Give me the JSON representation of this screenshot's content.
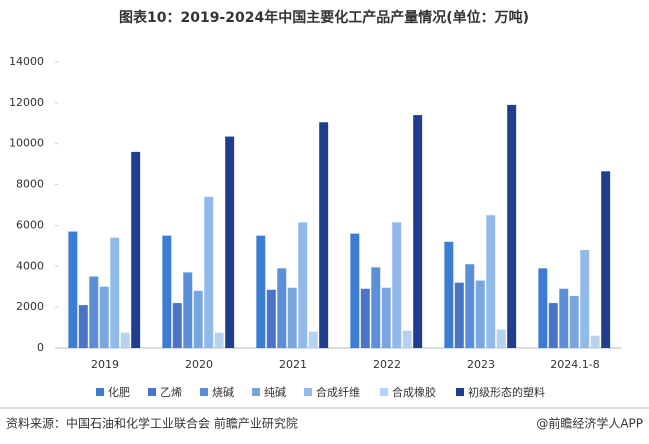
{
  "chart_data": {
    "type": "bar",
    "title": "图表10：2019-2024年中国主要化工产品产量情况(单位：万吨)",
    "categories": [
      "2019",
      "2020",
      "2021",
      "2022",
      "2023",
      "2024.1-8"
    ],
    "series": [
      {
        "name": "化肥",
        "color": "#3d7cd3",
        "values": [
          5700,
          5500,
          5500,
          5600,
          5200,
          3900
        ]
      },
      {
        "name": "乙烯",
        "color": "#4a74c6",
        "values": [
          2100,
          2200,
          2850,
          2900,
          3200,
          2200
        ]
      },
      {
        "name": "烧碱",
        "color": "#5b8fd8",
        "values": [
          3500,
          3700,
          3900,
          3950,
          4100,
          2900
        ]
      },
      {
        "name": "纯碱",
        "color": "#7aa6e0",
        "values": [
          3000,
          2800,
          2950,
          2950,
          3300,
          2550
        ]
      },
      {
        "name": "合成纤维",
        "color": "#91b9ea",
        "values": [
          5400,
          7400,
          6150,
          6150,
          6500,
          4800
        ]
      },
      {
        "name": "合成橡胶",
        "color": "#b7d1f1",
        "values": [
          750,
          750,
          800,
          850,
          900,
          600
        ]
      },
      {
        "name": "初级形态的塑料",
        "color": "#1f3f8e",
        "values": [
          9600,
          10350,
          11050,
          11400,
          11900,
          8650
        ]
      }
    ],
    "ylim": [
      0,
      14000
    ],
    "yticks": [
      0,
      2000,
      4000,
      6000,
      8000,
      10000,
      12000,
      14000
    ],
    "source": "资料来源：中国石油和化学工业联合会 前瞻产业研究院",
    "credit": "@前瞻经济学人APP"
  }
}
